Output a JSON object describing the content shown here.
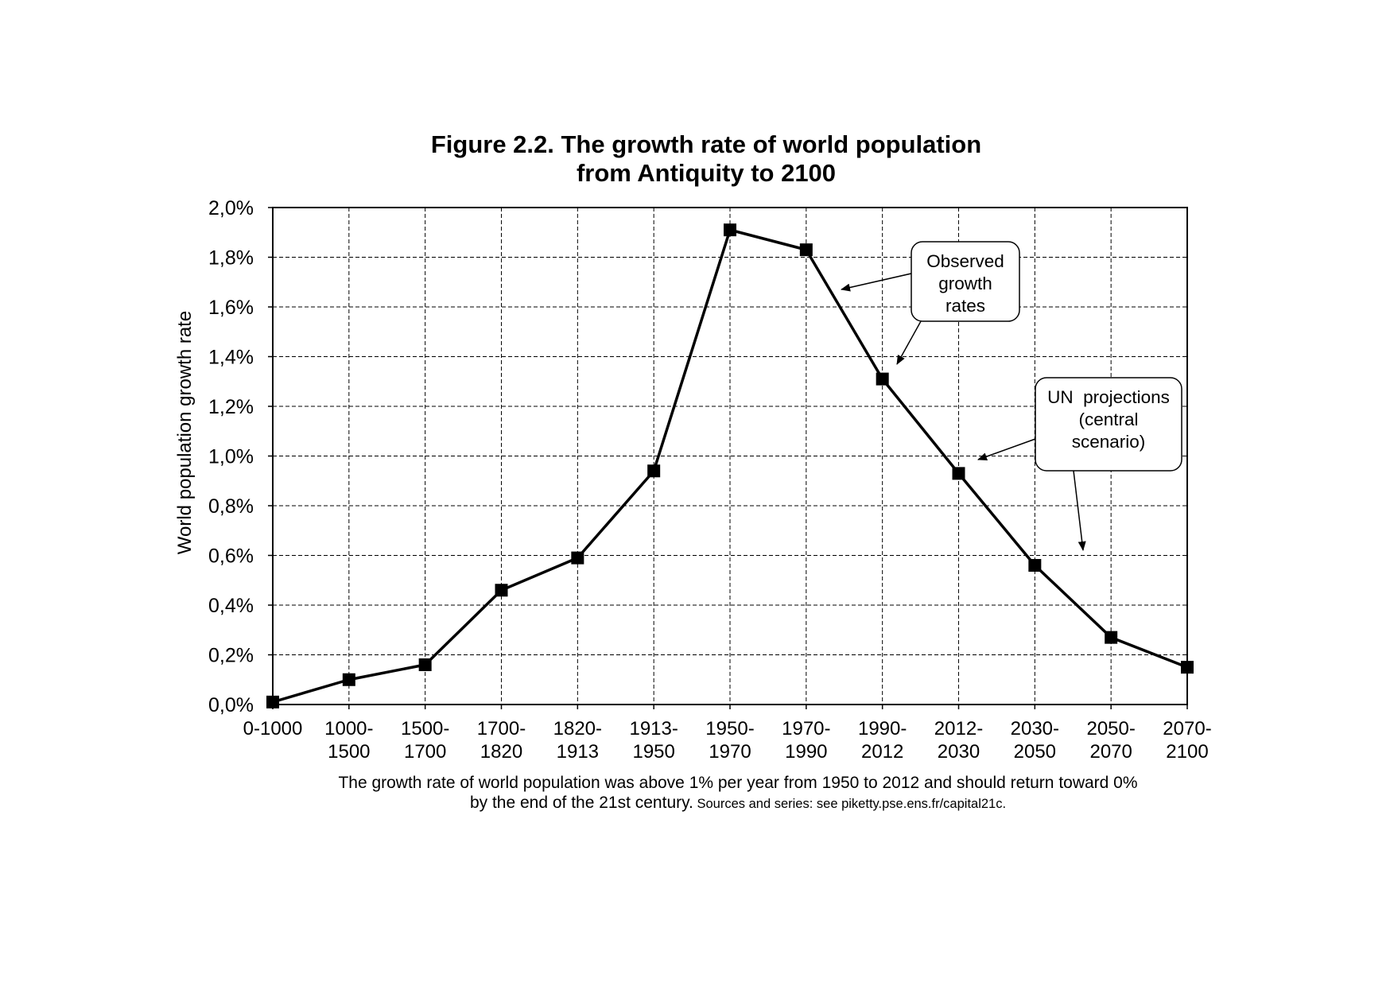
{
  "chart_data": {
    "type": "line",
    "title": [
      "Figure 2.2. The growth rate of world population",
      "from Antiquity to 2100"
    ],
    "xlabel": "",
    "ylabel": "World population growth rate",
    "ylim": [
      0,
      0.02
    ],
    "yticks": [
      0,
      0.002,
      0.004,
      0.006,
      0.008,
      0.01,
      0.012,
      0.014,
      0.016,
      0.018,
      0.02
    ],
    "ytick_labels": [
      "0,0%",
      "0,2%",
      "0,4%",
      "0,6%",
      "0,8%",
      "1,0%",
      "1,2%",
      "1,4%",
      "1,6%",
      "1,8%",
      "2,0%"
    ],
    "grid": true,
    "categories": [
      [
        "0-1000"
      ],
      [
        "1000-",
        "1500"
      ],
      [
        "1500-",
        "1700"
      ],
      [
        "1700-",
        "1820"
      ],
      [
        "1820-",
        "1913"
      ],
      [
        "1913-",
        "1950"
      ],
      [
        "1950-",
        "1970"
      ],
      [
        "1970-",
        "1990"
      ],
      [
        "1990-",
        "2012"
      ],
      [
        "2012-",
        "2030"
      ],
      [
        "2030-",
        "2050"
      ],
      [
        "2050-",
        "2070"
      ],
      [
        "2070-",
        "2100"
      ]
    ],
    "series": [
      {
        "name": "World population growth rate",
        "values": [
          0.0001,
          0.001,
          0.0016,
          0.0046,
          0.0059,
          0.0094,
          0.0191,
          0.0183,
          0.0131,
          0.0093,
          0.0056,
          0.0027,
          0.0015
        ]
      }
    ],
    "annotations": [
      {
        "lines": [
          "Observed",
          "growth",
          "rates"
        ],
        "points_to": [
          "1970-1990",
          "1990-2012"
        ]
      },
      {
        "lines": [
          "UN  projections",
          "(central",
          "scenario)"
        ],
        "points_to": [
          "2012-2030",
          "2030-2050"
        ]
      }
    ],
    "caption": {
      "line1": "The growth rate of world population was above 1% per year from 1950 to 2012 and should return toward 0%",
      "line2_main": "by the end of the 21st century.",
      "line2_source": " Sources and series: see piketty.pse.ens.fr/capital21c."
    }
  }
}
